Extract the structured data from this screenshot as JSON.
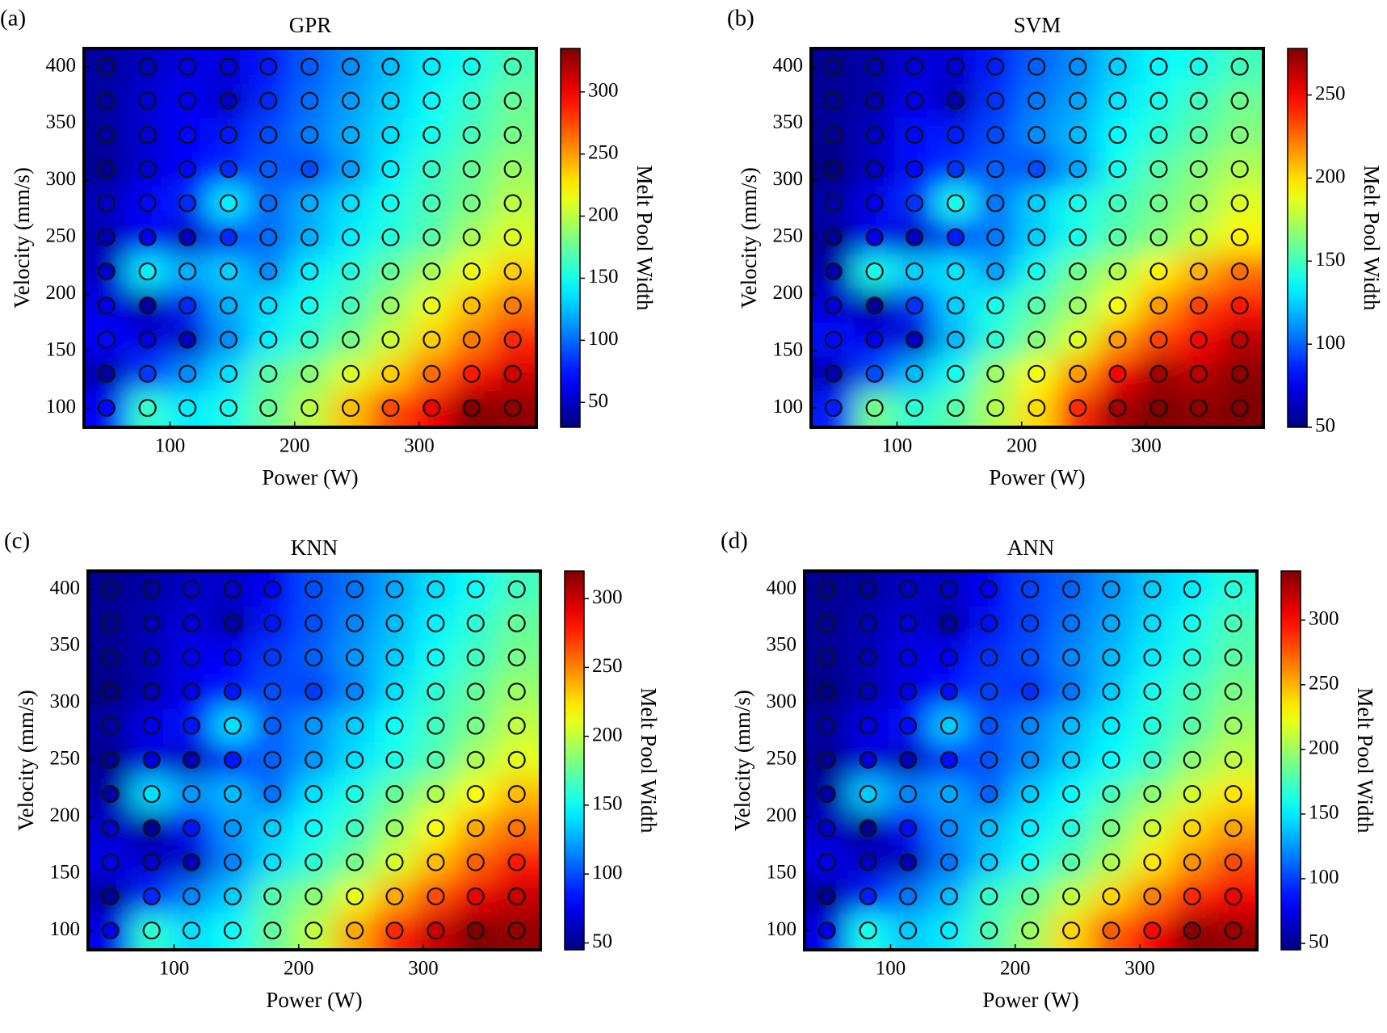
{
  "chart_data": [
    {
      "type": "heatmap",
      "panel_label": "(a)",
      "title": "GPR",
      "xlabel": "Power (W)",
      "ylabel": "Velocity (mm/s)",
      "colormap": "jet",
      "x": [
        49,
        82,
        114,
        147,
        179,
        212,
        245,
        277,
        310,
        342,
        375
      ],
      "y": [
        400,
        370,
        340,
        310,
        280,
        250,
        220,
        190,
        160,
        130,
        100
      ],
      "z": [
        [
          40,
          50,
          60,
          60,
          75,
          95,
          110,
          125,
          140,
          150,
          165
        ],
        [
          40,
          55,
          65,
          50,
          80,
          100,
          115,
          130,
          145,
          160,
          175
        ],
        [
          40,
          55,
          70,
          75,
          90,
          105,
          120,
          135,
          150,
          165,
          180
        ],
        [
          35,
          55,
          70,
          80,
          95,
          90,
          115,
          140,
          160,
          175,
          190
        ],
        [
          50,
          70,
          80,
          140,
          100,
          120,
          135,
          150,
          165,
          180,
          200
        ],
        [
          45,
          65,
          50,
          80,
          100,
          120,
          140,
          155,
          170,
          195,
          210
        ],
        [
          50,
          140,
          120,
          130,
          110,
          140,
          155,
          175,
          195,
          215,
          235
        ],
        [
          60,
          40,
          80,
          120,
          135,
          150,
          165,
          190,
          215,
          240,
          260
        ],
        [
          70,
          60,
          50,
          110,
          140,
          160,
          180,
          205,
          235,
          260,
          285
        ],
        [
          40,
          85,
          110,
          135,
          170,
          185,
          210,
          235,
          265,
          290,
          310
        ],
        [
          70,
          160,
          140,
          150,
          175,
          200,
          240,
          275,
          300,
          335,
          330
        ]
      ],
      "xlim": [
        31,
        394
      ],
      "ylim": [
        83,
        416
      ],
      "xticks": [
        100,
        200,
        300
      ],
      "yticks": [
        100,
        150,
        200,
        250,
        300,
        350,
        400
      ],
      "colorbar": {
        "label": "Melt Pool Width",
        "lim": [
          30,
          335
        ],
        "ticks": [
          50,
          100,
          150,
          200,
          250,
          300
        ]
      }
    },
    {
      "type": "heatmap",
      "panel_label": "(b)",
      "title": "SVM",
      "xlabel": "Power (W)",
      "ylabel": "Velocity (mm/s)",
      "colormap": "jet",
      "x": [
        49,
        82,
        114,
        147,
        179,
        212,
        245,
        277,
        310,
        342,
        375
      ],
      "y": [
        400,
        370,
        340,
        310,
        280,
        250,
        220,
        190,
        160,
        130,
        100
      ],
      "z": [
        [
          55,
          60,
          70,
          70,
          85,
          100,
          110,
          125,
          135,
          140,
          150
        ],
        [
          55,
          60,
          75,
          60,
          90,
          105,
          115,
          130,
          140,
          150,
          160
        ],
        [
          55,
          65,
          80,
          85,
          95,
          110,
          120,
          135,
          145,
          155,
          165
        ],
        [
          50,
          65,
          80,
          90,
          100,
          95,
          115,
          140,
          155,
          165,
          175
        ],
        [
          60,
          75,
          90,
          140,
          105,
          125,
          140,
          150,
          160,
          170,
          185
        ],
        [
          55,
          75,
          65,
          85,
          105,
          125,
          140,
          155,
          165,
          180,
          195
        ],
        [
          60,
          140,
          125,
          130,
          115,
          140,
          160,
          175,
          195,
          210,
          225
        ],
        [
          70,
          55,
          90,
          125,
          140,
          155,
          170,
          190,
          215,
          235,
          245
        ],
        [
          80,
          75,
          65,
          120,
          145,
          165,
          185,
          215,
          235,
          250,
          265
        ],
        [
          60,
          95,
          120,
          140,
          170,
          190,
          215,
          250,
          270,
          265,
          275
        ],
        [
          85,
          160,
          145,
          155,
          175,
          200,
          240,
          270,
          278,
          275,
          278
        ]
      ],
      "xlim": [
        31,
        394
      ],
      "ylim": [
        83,
        416
      ],
      "xticks": [
        100,
        200,
        300
      ],
      "yticks": [
        100,
        150,
        200,
        250,
        300,
        350,
        400
      ],
      "colorbar": {
        "label": "Melt Pool Width",
        "lim": [
          50,
          278
        ],
        "ticks": [
          50,
          100,
          150,
          200,
          250
        ]
      }
    },
    {
      "type": "heatmap",
      "panel_label": "(c)",
      "title": "KNN",
      "xlabel": "Power (W)",
      "ylabel": "Velocity (mm/s)",
      "colormap": "jet",
      "x": [
        49,
        82,
        114,
        147,
        179,
        212,
        245,
        277,
        310,
        342,
        375
      ],
      "y": [
        400,
        370,
        340,
        310,
        280,
        250,
        220,
        190,
        160,
        130,
        100
      ],
      "z": [
        [
          50,
          55,
          65,
          65,
          80,
          100,
          110,
          125,
          140,
          150,
          165
        ],
        [
          50,
          60,
          70,
          55,
          85,
          100,
          115,
          130,
          145,
          160,
          175
        ],
        [
          50,
          60,
          75,
          80,
          95,
          105,
          120,
          135,
          150,
          165,
          180
        ],
        [
          45,
          60,
          75,
          85,
          100,
          95,
          115,
          140,
          160,
          175,
          190
        ],
        [
          55,
          75,
          85,
          140,
          105,
          120,
          135,
          150,
          165,
          180,
          200
        ],
        [
          50,
          70,
          60,
          85,
          105,
          120,
          140,
          155,
          170,
          195,
          210
        ],
        [
          55,
          140,
          120,
          130,
          110,
          140,
          155,
          175,
          195,
          215,
          235
        ],
        [
          65,
          50,
          85,
          120,
          135,
          150,
          165,
          190,
          215,
          240,
          255
        ],
        [
          75,
          65,
          60,
          115,
          140,
          160,
          180,
          205,
          235,
          260,
          280
        ],
        [
          50,
          90,
          115,
          135,
          170,
          185,
          210,
          240,
          265,
          290,
          300
        ],
        [
          75,
          160,
          140,
          150,
          175,
          200,
          240,
          275,
          300,
          320,
          315
        ]
      ],
      "xlim": [
        31,
        394
      ],
      "ylim": [
        83,
        416
      ],
      "xticks": [
        100,
        200,
        300
      ],
      "yticks": [
        100,
        150,
        200,
        250,
        300,
        350,
        400
      ],
      "colorbar": {
        "label": "Melt Pool Width",
        "lim": [
          45,
          320
        ],
        "ticks": [
          50,
          100,
          150,
          200,
          250,
          300
        ]
      }
    },
    {
      "type": "heatmap",
      "panel_label": "(d)",
      "title": "ANN",
      "xlabel": "Power (W)",
      "ylabel": "Velocity (mm/s)",
      "colormap": "jet",
      "x": [
        49,
        82,
        114,
        147,
        179,
        212,
        245,
        277,
        310,
        342,
        375
      ],
      "y": [
        400,
        370,
        340,
        310,
        280,
        250,
        220,
        190,
        160,
        130,
        100
      ],
      "z": [
        [
          50,
          55,
          65,
          65,
          80,
          100,
          110,
          125,
          140,
          150,
          165
        ],
        [
          50,
          60,
          70,
          55,
          85,
          100,
          115,
          130,
          145,
          160,
          175
        ],
        [
          50,
          60,
          75,
          80,
          95,
          105,
          120,
          135,
          150,
          165,
          180
        ],
        [
          45,
          60,
          75,
          85,
          100,
          95,
          115,
          140,
          160,
          175,
          190
        ],
        [
          55,
          75,
          85,
          140,
          105,
          120,
          135,
          150,
          165,
          180,
          200
        ],
        [
          50,
          70,
          60,
          85,
          105,
          120,
          140,
          155,
          170,
          195,
          210
        ],
        [
          55,
          140,
          120,
          130,
          110,
          140,
          155,
          175,
          195,
          215,
          235
        ],
        [
          65,
          50,
          85,
          120,
          135,
          150,
          165,
          190,
          215,
          240,
          255
        ],
        [
          75,
          65,
          60,
          115,
          140,
          160,
          180,
          205,
          235,
          260,
          280
        ],
        [
          50,
          90,
          115,
          135,
          170,
          185,
          210,
          240,
          265,
          290,
          305
        ],
        [
          75,
          160,
          140,
          150,
          175,
          200,
          240,
          275,
          300,
          335,
          330
        ]
      ],
      "xlim": [
        31,
        394
      ],
      "ylim": [
        83,
        416
      ],
      "xticks": [
        100,
        200,
        300
      ],
      "yticks": [
        100,
        150,
        200,
        250,
        300,
        350,
        400
      ],
      "colorbar": {
        "label": "Melt Pool Width",
        "lim": [
          45,
          338
        ],
        "ticks": [
          50,
          100,
          150,
          200,
          250,
          300
        ]
      }
    }
  ]
}
